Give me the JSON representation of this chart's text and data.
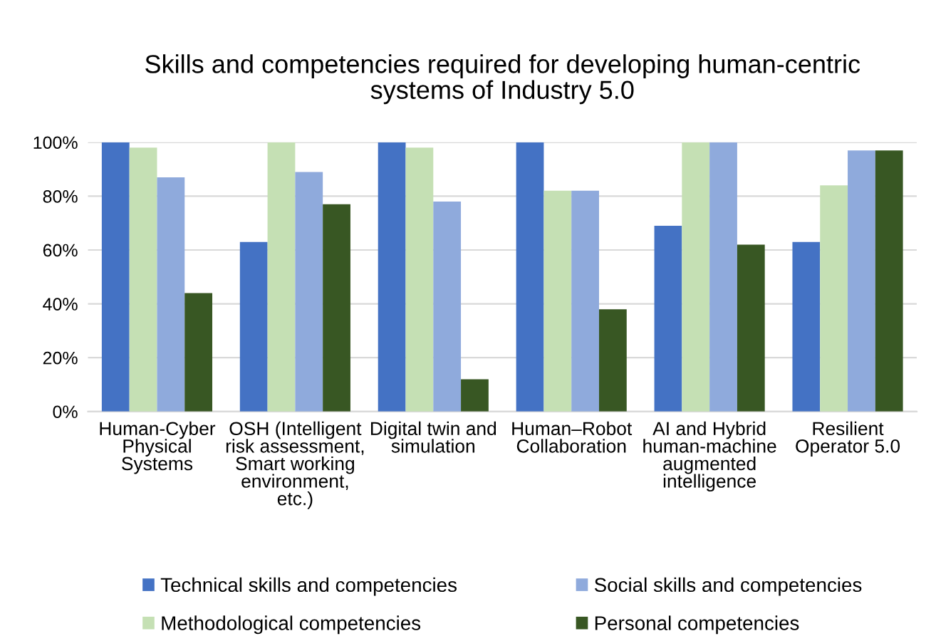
{
  "chart_data": {
    "type": "bar",
    "title": "Skills and competencies required for developing human-centric\nsystems of Industry 5.0",
    "categories": [
      "Human-Cyber\nPhysical\nSystems",
      "OSH (Intelligent\nrisk assessment,\nSmart working\nenvironment,\netc.)",
      "Digital twin and\nsimulation",
      "Human–Robot\nCollaboration",
      "AI and Hybrid\nhuman-machine\naugmented\nintelligence",
      "Resilient\nOperator 5.0"
    ],
    "series": [
      {
        "name": "Technical skills and competencies",
        "color": "#4472c4",
        "values": [
          100,
          63,
          100,
          100,
          69,
          63
        ]
      },
      {
        "name": "Methodological competencies",
        "color": "#c5e0b4",
        "values": [
          98,
          100,
          98,
          82,
          100,
          84
        ]
      },
      {
        "name": "Social skills and competencies",
        "color": "#8faadc",
        "values": [
          87,
          89,
          78,
          82,
          100,
          97
        ]
      },
      {
        "name": "Personal competencies",
        "color": "#385723",
        "values": [
          44,
          77,
          12,
          38,
          62,
          97
        ]
      }
    ],
    "ylim": [
      0,
      100
    ],
    "yticks": [
      {
        "value": 0,
        "label": "0%"
      },
      {
        "value": 20,
        "label": "20%"
      },
      {
        "value": 40,
        "label": "40%"
      },
      {
        "value": 60,
        "label": "60%"
      },
      {
        "value": 80,
        "label": "80%"
      },
      {
        "value": 100,
        "label": "100%"
      }
    ],
    "grid": "y",
    "legend": "bottom"
  }
}
